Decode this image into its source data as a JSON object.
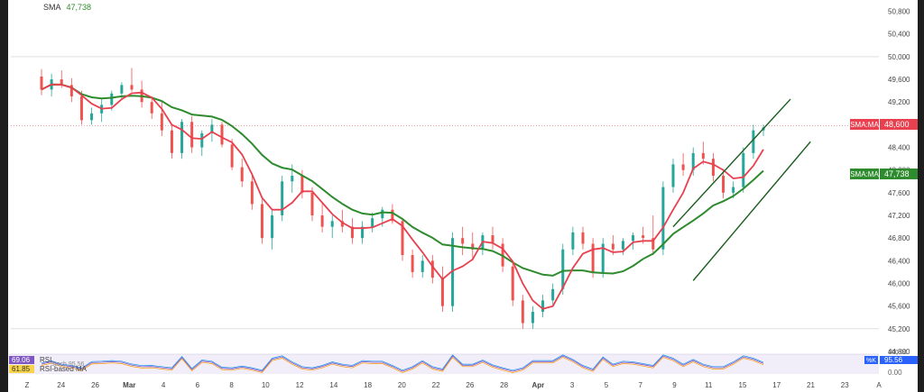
{
  "header": {
    "indicator_name": "SMA",
    "indicator_value": "47,738"
  },
  "yaxis": {
    "ticks": [
      "50,800",
      "50,400",
      "50,000",
      "49,600",
      "49,200",
      "48,800",
      "48,400",
      "48,000",
      "47,600",
      "47,200",
      "46,800",
      "46,400",
      "46,000",
      "45,600",
      "45,200",
      "44,800"
    ]
  },
  "xaxis": {
    "ticks": [
      "Z",
      "24",
      "26",
      "Mar",
      "4",
      "6",
      "8",
      "10",
      "12",
      "14",
      "18",
      "20",
      "22",
      "26",
      "28",
      "Apr",
      "3",
      "5",
      "7",
      "9",
      "11",
      "15",
      "17",
      "21",
      "23",
      "A"
    ]
  },
  "price_badges": {
    "fast_label": "SMA:MA",
    "fast_value": "48,600",
    "fast_color": "#e8404f",
    "slow_label": "SMA:MA",
    "slow_value": "47,738",
    "slow_color": "#2e8b2e"
  },
  "rsi_panel": {
    "rsi_value": "69.06",
    "rsi_label": "RSI",
    "ma_value": "61.85",
    "ma_label": "RSI-based MA",
    "stoch_text": "Stoch 95.56",
    "k_label": "%K",
    "k_value": "95.56",
    "scale_top": "100.00",
    "scale_bottom": "0.00"
  },
  "chart_data": {
    "type": "candlestick",
    "ylim": [
      44800,
      51000
    ],
    "candles": [
      [
        49650,
        49780,
        49320,
        49420
      ],
      [
        49420,
        49700,
        49300,
        49600
      ],
      [
        49600,
        49760,
        49450,
        49500
      ],
      [
        49500,
        49620,
        49200,
        49300
      ],
      [
        49300,
        49400,
        48800,
        48880
      ],
      [
        48880,
        49100,
        48800,
        49000
      ],
      [
        49000,
        49250,
        48850,
        49150
      ],
      [
        49150,
        49400,
        49050,
        49350
      ],
      [
        49350,
        49550,
        49250,
        49500
      ],
      [
        49500,
        49800,
        49380,
        49420
      ],
      [
        49420,
        49580,
        49100,
        49200
      ],
      [
        49200,
        49300,
        48900,
        49000
      ],
      [
        49000,
        49200,
        48600,
        48700
      ],
      [
        48700,
        48800,
        48200,
        48300
      ],
      [
        48300,
        48900,
        48200,
        48850
      ],
      [
        48850,
        48950,
        48300,
        48400
      ],
      [
        48400,
        48700,
        48250,
        48650
      ],
      [
        48650,
        48900,
        48500,
        48800
      ],
      [
        48800,
        48850,
        48400,
        48450
      ],
      [
        48450,
        48550,
        48000,
        48050
      ],
      [
        48050,
        48200,
        47700,
        47800
      ],
      [
        47800,
        47900,
        47300,
        47400
      ],
      [
        47400,
        47500,
        46700,
        46800
      ],
      [
        46800,
        47300,
        46600,
        47200
      ],
      [
        47200,
        47900,
        47100,
        47800
      ],
      [
        47800,
        48100,
        47600,
        47900
      ],
      [
        47900,
        48000,
        47500,
        47600
      ],
      [
        47600,
        47700,
        47100,
        47200
      ],
      [
        47200,
        47400,
        46900,
        47000
      ],
      [
        47000,
        47200,
        46800,
        47100
      ],
      [
        47100,
        47300,
        46900,
        47000
      ],
      [
        47000,
        47150,
        46700,
        46800
      ],
      [
        46800,
        47100,
        46700,
        47000
      ],
      [
        47000,
        47250,
        46900,
        47150
      ],
      [
        47150,
        47350,
        47000,
        47300
      ],
      [
        47300,
        47400,
        47050,
        47100
      ],
      [
        47100,
        47150,
        46400,
        46500
      ],
      [
        46500,
        46600,
        46100,
        46200
      ],
      [
        46200,
        46500,
        46100,
        46400
      ],
      [
        46400,
        46500,
        46000,
        46100
      ],
      [
        46100,
        46300,
        45500,
        45600
      ],
      [
        45600,
        46900,
        45500,
        46800
      ],
      [
        46800,
        47000,
        46500,
        46700
      ],
      [
        46700,
        46900,
        46400,
        46600
      ],
      [
        46600,
        46900,
        46500,
        46850
      ],
      [
        46850,
        47000,
        46600,
        46700
      ],
      [
        46700,
        46800,
        46200,
        46300
      ],
      [
        46300,
        46400,
        45600,
        45700
      ],
      [
        45700,
        45800,
        45200,
        45300
      ],
      [
        45300,
        45600,
        45200,
        45500
      ],
      [
        45500,
        45800,
        45400,
        45700
      ],
      [
        45700,
        46000,
        45600,
        45900
      ],
      [
        45900,
        46700,
        45800,
        46600
      ],
      [
        46600,
        47000,
        46500,
        46900
      ],
      [
        46900,
        47000,
        46600,
        46700
      ],
      [
        46700,
        46800,
        46100,
        46200
      ],
      [
        46200,
        46800,
        46100,
        46700
      ],
      [
        46700,
        46850,
        46500,
        46600
      ],
      [
        46600,
        46800,
        46500,
        46750
      ],
      [
        46750,
        46900,
        46600,
        46850
      ],
      [
        46850,
        47000,
        46700,
        46800
      ],
      [
        46800,
        47200,
        46500,
        46600
      ],
      [
        46600,
        47800,
        46500,
        47700
      ],
      [
        47700,
        48200,
        47600,
        48100
      ],
      [
        48100,
        48300,
        47900,
        48000
      ],
      [
        48000,
        48400,
        47900,
        48300
      ],
      [
        48300,
        48500,
        48100,
        48200
      ],
      [
        48200,
        48300,
        47800,
        47900
      ],
      [
        47900,
        48000,
        47500,
        47600
      ],
      [
        47600,
        47800,
        47500,
        47700
      ],
      [
        47700,
        48400,
        47600,
        48300
      ],
      [
        48300,
        48800,
        48200,
        48700
      ],
      [
        48700,
        48800,
        48600,
        48750
      ]
    ],
    "trendlines": {
      "upper": [
        [
          63,
          47000
        ],
        [
          72,
          49250
        ]
      ],
      "lower": [
        [
          65,
          46050
        ],
        [
          74,
          48500
        ]
      ]
    }
  }
}
